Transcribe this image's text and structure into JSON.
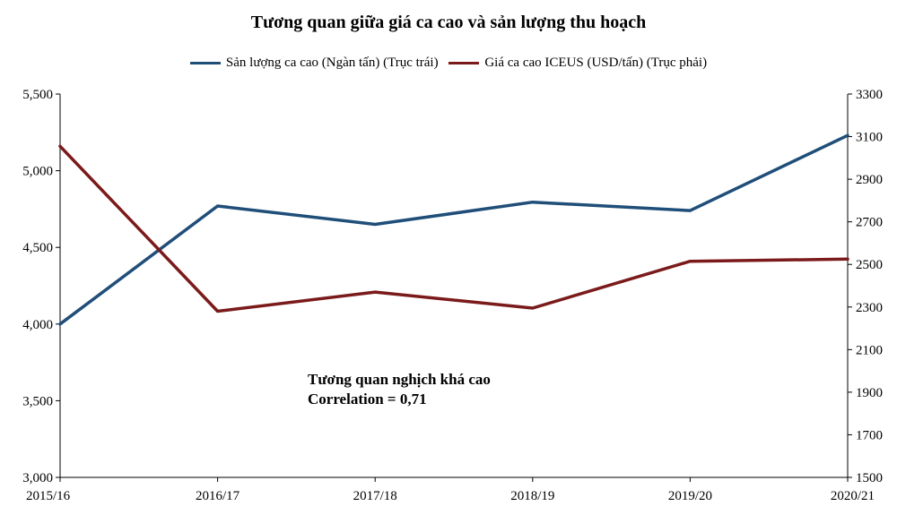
{
  "chart_data": {
    "type": "line",
    "title": "Tương quan giữa giá ca cao và sản lượng thu hoạch",
    "categories": [
      "2015/16",
      "2016/17",
      "2017/18",
      "2018/19",
      "2019/20",
      "2020/21"
    ],
    "series": [
      {
        "name": "Sản lượng ca cao (Ngàn tấn) (Trục trái)",
        "axis": "left",
        "color": "#1f4e79",
        "values": [
          4000,
          4770,
          4650,
          4795,
          4740,
          5230
        ]
      },
      {
        "name": "Giá ca cao ICEUS (USD/tấn) (Trục phải)",
        "axis": "right",
        "color": "#7b1a1a",
        "values": [
          3055,
          2280,
          2370,
          2295,
          2515,
          2525
        ]
      }
    ],
    "y_left": {
      "min": 3000,
      "max": 5500,
      "step": 500,
      "tick_labels": [
        "3,000",
        "3,500",
        "4,000",
        "4,500",
        "5,000",
        "5,500"
      ]
    },
    "y_right": {
      "min": 1500,
      "max": 3300,
      "step": 200,
      "tick_labels": [
        "1500",
        "1700",
        "1900",
        "2100",
        "2300",
        "2500",
        "2700",
        "2900",
        "3100",
        "3300"
      ]
    },
    "grid": false,
    "legend_position": "top",
    "annotation": {
      "line1": "Tương quan nghịch khá cao",
      "line2": "Correlation = 0,71"
    }
  }
}
